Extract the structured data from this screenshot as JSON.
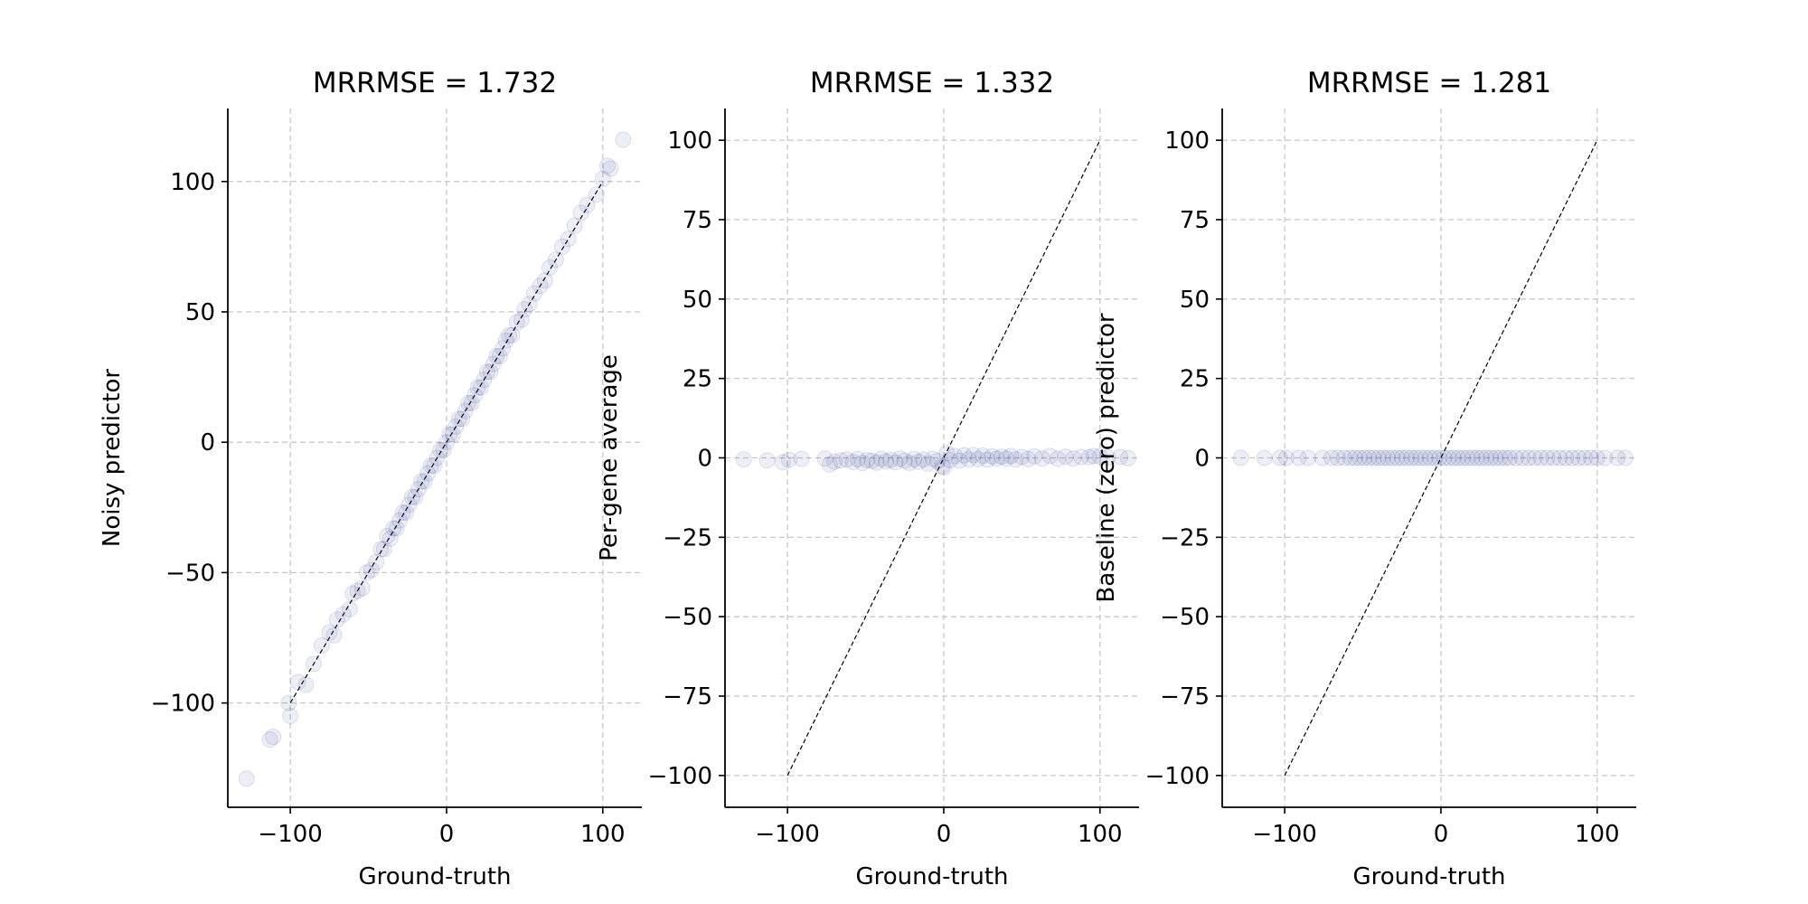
{
  "chart_data": [
    {
      "type": "scatter",
      "title": "MRRMSE = 1.732",
      "xlabel": "Ground-truth",
      "ylabel": "Noisy predictor",
      "xlim": [
        -140,
        125
      ],
      "ylim": [
        -140,
        128
      ],
      "xticks": [
        -100,
        0,
        100
      ],
      "yticks": [
        -100,
        -50,
        0,
        50,
        100
      ],
      "xtick_labels": [
        "−100",
        "0",
        "100"
      ],
      "ytick_labels": [
        "−100",
        "−50",
        "0",
        "50",
        "100"
      ],
      "grid": true,
      "identity_line": [
        [
          -100,
          -100
        ],
        [
          100,
          100
        ]
      ],
      "color": "#0b1780",
      "points": [
        [
          -128,
          -129
        ],
        [
          -113,
          -114
        ],
        [
          -111,
          -113
        ],
        [
          -101,
          -100
        ],
        [
          -100,
          -105
        ],
        [
          -95,
          -92
        ],
        [
          -90,
          -93
        ],
        [
          -85,
          -85
        ],
        [
          -80,
          -78
        ],
        [
          -75,
          -73
        ],
        [
          -72,
          -74
        ],
        [
          -70,
          -68
        ],
        [
          -66,
          -66
        ],
        [
          -62,
          -64
        ],
        [
          -60,
          -58
        ],
        [
          -57,
          -57
        ],
        [
          -54,
          -56
        ],
        [
          -51,
          -50
        ],
        [
          -48,
          -49
        ],
        [
          -45,
          -46
        ],
        [
          -42,
          -41
        ],
        [
          -40,
          -41
        ],
        [
          -38,
          -36
        ],
        [
          -36,
          -37
        ],
        [
          -34,
          -33
        ],
        [
          -32,
          -33
        ],
        [
          -30,
          -30
        ],
        [
          -28,
          -27
        ],
        [
          -26,
          -27
        ],
        [
          -24,
          -24
        ],
        [
          -22,
          -21
        ],
        [
          -20,
          -21
        ],
        [
          -18,
          -18
        ],
        [
          -16,
          -15
        ],
        [
          -14,
          -15
        ],
        [
          -12,
          -12
        ],
        [
          -10,
          -9
        ],
        [
          -8,
          -9
        ],
        [
          -6,
          -6
        ],
        [
          -4,
          -3
        ],
        [
          -2,
          -3
        ],
        [
          0,
          0
        ],
        [
          2,
          3
        ],
        [
          4,
          3
        ],
        [
          6,
          6
        ],
        [
          8,
          9
        ],
        [
          10,
          9
        ],
        [
          12,
          12
        ],
        [
          14,
          15
        ],
        [
          16,
          15
        ],
        [
          18,
          18
        ],
        [
          20,
          21
        ],
        [
          22,
          21
        ],
        [
          24,
          24
        ],
        [
          26,
          27
        ],
        [
          28,
          27
        ],
        [
          30,
          30
        ],
        [
          32,
          33
        ],
        [
          34,
          33
        ],
        [
          36,
          36
        ],
        [
          38,
          39
        ],
        [
          40,
          41
        ],
        [
          42,
          41
        ],
        [
          45,
          46
        ],
        [
          48,
          47
        ],
        [
          50,
          51
        ],
        [
          53,
          53
        ],
        [
          56,
          57
        ],
        [
          60,
          60
        ],
        [
          63,
          62
        ],
        [
          66,
          67
        ],
        [
          70,
          70
        ],
        [
          74,
          75
        ],
        [
          78,
          78
        ],
        [
          82,
          83
        ],
        [
          86,
          88
        ],
        [
          90,
          91
        ],
        [
          96,
          95
        ],
        [
          100,
          101
        ],
        [
          103,
          106
        ],
        [
          105,
          105
        ],
        [
          113,
          116
        ]
      ]
    },
    {
      "type": "scatter",
      "title": "MRRMSE = 1.332",
      "xlabel": "Ground-truth",
      "ylabel": "Per-gene average",
      "xlim": [
        -140,
        125
      ],
      "ylim": [
        -110,
        110
      ],
      "xticks": [
        -100,
        0,
        100
      ],
      "yticks": [
        -100,
        -75,
        -50,
        -25,
        0,
        25,
        50,
        75,
        100
      ],
      "xtick_labels": [
        "−100",
        "0",
        "100"
      ],
      "ytick_labels": [
        "−100",
        "−75",
        "−50",
        "−25",
        "0",
        "25",
        "50",
        "75",
        "100"
      ],
      "grid": true,
      "identity_line": [
        [
          -100,
          -100
        ],
        [
          100,
          100
        ]
      ],
      "color": "#0b1780",
      "points": [
        [
          -128,
          -0.5
        ],
        [
          -113,
          -0.8
        ],
        [
          -103,
          -1.4
        ],
        [
          -99,
          -0.6
        ],
        [
          -91,
          -0.3
        ],
        [
          -76,
          -0.2
        ],
        [
          -73,
          -2.1
        ],
        [
          -70,
          -1.2
        ],
        [
          -66,
          -0.8
        ],
        [
          -62,
          -0.5
        ],
        [
          -58,
          -1.3
        ],
        [
          -55,
          -0.4
        ],
        [
          -52,
          -1.6
        ],
        [
          -49,
          -0.7
        ],
        [
          -46,
          -0.9
        ],
        [
          -43,
          -1.5
        ],
        [
          -40,
          -0.3
        ],
        [
          -37,
          -1.1
        ],
        [
          -34,
          -0.6
        ],
        [
          -31,
          -1.4
        ],
        [
          -28,
          -0.2
        ],
        [
          -25,
          -0.9
        ],
        [
          -22,
          -1.6
        ],
        [
          -19,
          -0.4
        ],
        [
          -16,
          -1.2
        ],
        [
          -13,
          -0.5
        ],
        [
          -10,
          -1.8
        ],
        [
          -7,
          -0.3
        ],
        [
          -4,
          -1.0
        ],
        [
          -1,
          -2.6
        ],
        [
          0,
          -3.0
        ],
        [
          2,
          1.5
        ],
        [
          4,
          -0.7
        ],
        [
          7,
          0.6
        ],
        [
          10,
          -0.9
        ],
        [
          13,
          0.8
        ],
        [
          16,
          -0.5
        ],
        [
          19,
          0.9
        ],
        [
          22,
          -0.4
        ],
        [
          25,
          0.7
        ],
        [
          28,
          -0.6
        ],
        [
          31,
          0.5
        ],
        [
          34,
          -0.3
        ],
        [
          37,
          0.4
        ],
        [
          40,
          -0.2
        ],
        [
          43,
          0.6
        ],
        [
          46,
          -0.5
        ],
        [
          50,
          0.3
        ],
        [
          54,
          -0.4
        ],
        [
          58,
          0.5
        ],
        [
          63,
          -0.2
        ],
        [
          68,
          0.6
        ],
        [
          73,
          -0.3
        ],
        [
          78,
          0.4
        ],
        [
          83,
          -0.2
        ],
        [
          88,
          0.3
        ],
        [
          93,
          0.2
        ],
        [
          96,
          0.6
        ],
        [
          100,
          0.4
        ],
        [
          105,
          0.1
        ],
        [
          113,
          0.3
        ],
        [
          118,
          -0.1
        ]
      ]
    },
    {
      "type": "scatter",
      "title": "MRRMSE = 1.281",
      "xlabel": "Ground-truth",
      "ylabel": "Baseline (zero) predictor",
      "xlim": [
        -140,
        125
      ],
      "ylim": [
        -110,
        110
      ],
      "xticks": [
        -100,
        0,
        100
      ],
      "yticks": [
        -100,
        -75,
        -50,
        -25,
        0,
        25,
        50,
        75,
        100
      ],
      "xtick_labels": [
        "−100",
        "0",
        "100"
      ],
      "ytick_labels": [
        "−100",
        "−75",
        "−50",
        "−25",
        "0",
        "25",
        "50",
        "75",
        "100"
      ],
      "grid": true,
      "identity_line": [
        [
          -100,
          -100
        ],
        [
          100,
          100
        ]
      ],
      "color": "#0b1780",
      "points": [
        [
          -128,
          0
        ],
        [
          -113,
          0
        ],
        [
          -103,
          0
        ],
        [
          -99,
          0
        ],
        [
          -91,
          0
        ],
        [
          -85,
          0
        ],
        [
          -76,
          0
        ],
        [
          -70,
          0
        ],
        [
          -66,
          0
        ],
        [
          -62,
          0
        ],
        [
          -58,
          0
        ],
        [
          -55,
          0
        ],
        [
          -52,
          0
        ],
        [
          -49,
          0
        ],
        [
          -46,
          0
        ],
        [
          -43,
          0
        ],
        [
          -40,
          0
        ],
        [
          -37,
          0
        ],
        [
          -34,
          0
        ],
        [
          -31,
          0
        ],
        [
          -28,
          0
        ],
        [
          -25,
          0
        ],
        [
          -22,
          0
        ],
        [
          -19,
          0
        ],
        [
          -16,
          0
        ],
        [
          -13,
          0
        ],
        [
          -10,
          0
        ],
        [
          -7,
          0
        ],
        [
          -4,
          0
        ],
        [
          -1,
          0
        ],
        [
          2,
          0
        ],
        [
          5,
          0
        ],
        [
          8,
          0
        ],
        [
          11,
          0
        ],
        [
          14,
          0
        ],
        [
          17,
          0
        ],
        [
          20,
          0
        ],
        [
          23,
          0
        ],
        [
          26,
          0
        ],
        [
          29,
          0
        ],
        [
          32,
          0
        ],
        [
          35,
          0
        ],
        [
          38,
          0
        ],
        [
          41,
          0
        ],
        [
          44,
          0
        ],
        [
          48,
          0
        ],
        [
          52,
          0
        ],
        [
          56,
          0
        ],
        [
          60,
          0
        ],
        [
          64,
          0
        ],
        [
          68,
          0
        ],
        [
          72,
          0
        ],
        [
          76,
          0
        ],
        [
          80,
          0
        ],
        [
          84,
          0
        ],
        [
          88,
          0
        ],
        [
          92,
          0
        ],
        [
          96,
          0
        ],
        [
          100,
          0
        ],
        [
          105,
          0
        ],
        [
          113,
          0
        ],
        [
          118,
          0
        ]
      ]
    }
  ]
}
